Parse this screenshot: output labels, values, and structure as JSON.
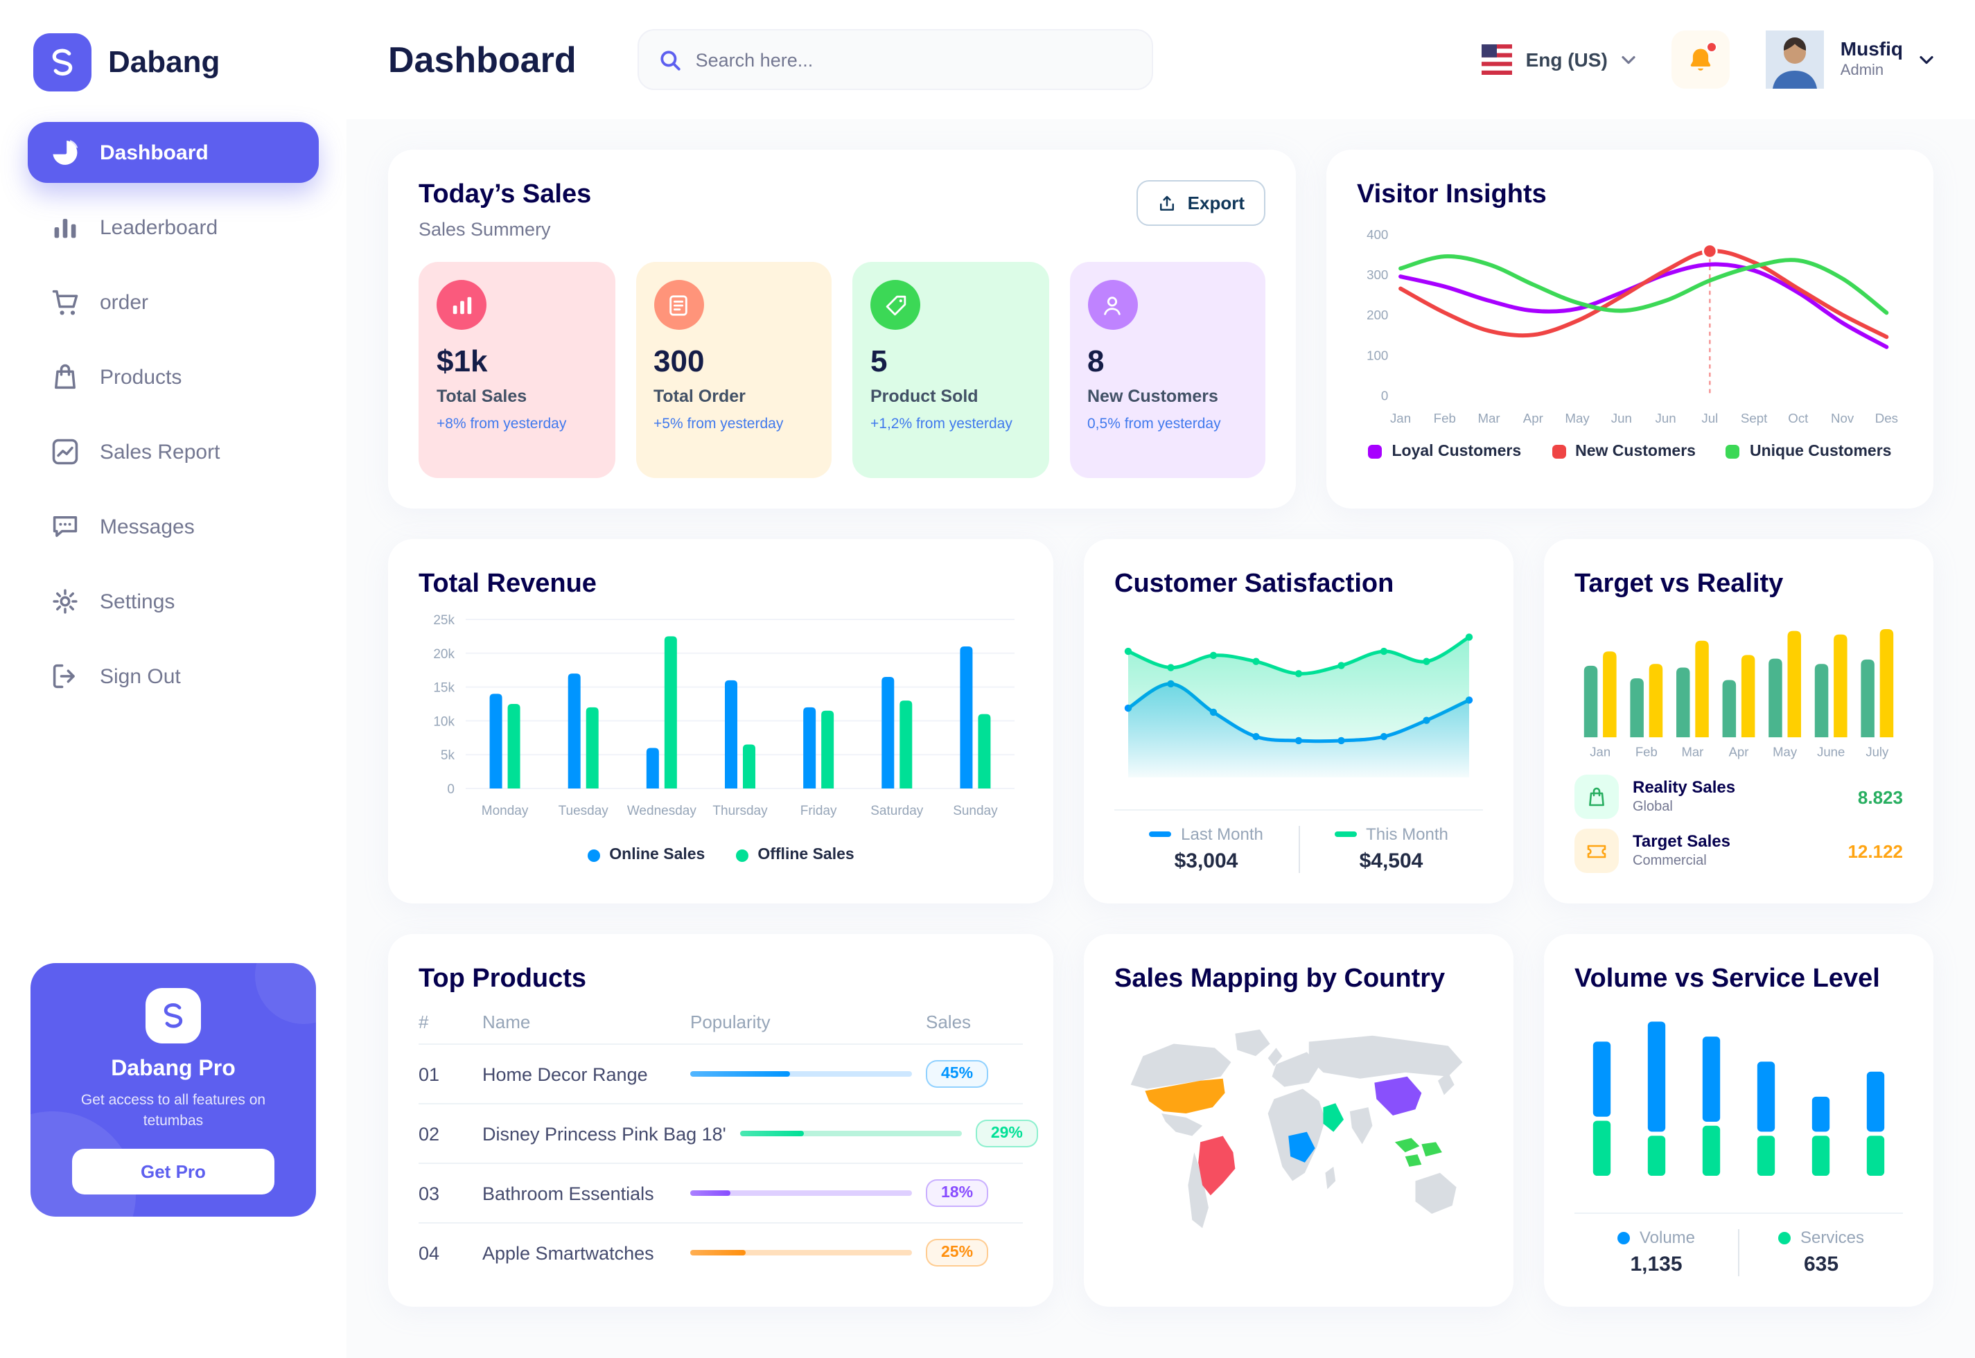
{
  "app": {
    "brand": "Dabang",
    "page_title": "Dashboard"
  },
  "theme": {
    "primary": "#5D5FEF",
    "page_bg": "#FAFBFC",
    "card_bg": "#FFFFFF",
    "heading": "#05004E",
    "text_dark": "#151D48",
    "text_gray": "#737791"
  },
  "sidebar": {
    "items": [
      {
        "label": "Dashboard",
        "icon": "pie-chart",
        "active": true
      },
      {
        "label": "Leaderboard",
        "icon": "bar-chart",
        "active": false
      },
      {
        "label": "order",
        "icon": "cart",
        "active": false
      },
      {
        "label": "Products",
        "icon": "bag",
        "active": false
      },
      {
        "label": "Sales Report",
        "icon": "line-chart",
        "active": false
      },
      {
        "label": "Messages",
        "icon": "chat",
        "active": false
      },
      {
        "label": "Settings",
        "icon": "gear",
        "active": false
      },
      {
        "label": "Sign Out",
        "icon": "sign-out",
        "active": false
      }
    ],
    "pro_card": {
      "title": "Dabang Pro",
      "subtitle": "Get access to all features on tetumbas",
      "button": "Get Pro"
    }
  },
  "header": {
    "search_placeholder": "Search here...",
    "language": "Eng (US)",
    "notification_dot": true,
    "user_name": "Musfiq",
    "user_role": "Admin"
  },
  "todays_sales": {
    "title": "Today’s Sales",
    "subtitle": "Sales Summery",
    "export_label": "Export",
    "stats": [
      {
        "value": "$1k",
        "label": "Total Sales",
        "delta": "+8% from yesterday",
        "bg": "#FFE2E5",
        "icon_bg": "#FA5A7D",
        "icon": "bar-chart"
      },
      {
        "value": "300",
        "label": "Total Order",
        "delta": "+5% from yesterday",
        "bg": "#FFF4DE",
        "icon_bg": "#FF947A",
        "icon": "order-list"
      },
      {
        "value": "5",
        "label": "Product Sold",
        "delta": "+1,2% from yesterday",
        "bg": "#DCFCE7",
        "icon_bg": "#3CD856",
        "icon": "tag-check"
      },
      {
        "value": "8",
        "label": "New Customers",
        "delta": "0,5% from yesterday",
        "bg": "#F3E8FF",
        "icon_bg": "#BF83FF",
        "icon": "new-customer"
      }
    ]
  },
  "chart_data": [
    {
      "name": "visitor_insights",
      "type": "line",
      "title": "Visitor Insights",
      "x": [
        "Jan",
        "Feb",
        "Mar",
        "Apr",
        "May",
        "Jun",
        "Jun",
        "Jul",
        "Sept",
        "Oct",
        "Nov",
        "Des"
      ],
      "ylim": [
        0,
        400
      ],
      "yticks": [
        0,
        100,
        200,
        300,
        400
      ],
      "grid": false,
      "legend_position": "bottom",
      "series": [
        {
          "name": "Loyal Customers",
          "color": "#A700FF",
          "values": [
            295,
            270,
            235,
            210,
            215,
            255,
            300,
            325,
            310,
            255,
            180,
            120
          ]
        },
        {
          "name": "New Customers",
          "color": "#EF4444",
          "values": [
            265,
            205,
            160,
            150,
            185,
            245,
            310,
            358,
            330,
            265,
            200,
            145
          ]
        },
        {
          "name": "Unique Customers",
          "color": "#3CD856",
          "values": [
            315,
            345,
            325,
            275,
            230,
            210,
            235,
            285,
            320,
            335,
            290,
            205
          ]
        }
      ],
      "highlight": {
        "x_index": 7,
        "series": "New Customers"
      }
    },
    {
      "name": "total_revenue",
      "type": "bar",
      "title": "Total Revenue",
      "categories": [
        "Monday",
        "Tuesday",
        "Wednesday",
        "Thursday",
        "Friday",
        "Saturday",
        "Sunday"
      ],
      "ylim": [
        0,
        25000
      ],
      "yticks": [
        "0",
        "5k",
        "10k",
        "15k",
        "20k",
        "25k"
      ],
      "grid": true,
      "legend_position": "bottom",
      "series": [
        {
          "name": "Online Sales",
          "color": "#0095FF",
          "values": [
            14000,
            17000,
            6000,
            16000,
            12000,
            16500,
            21000
          ]
        },
        {
          "name": "Offline Sales",
          "color": "#00E096",
          "values": [
            12500,
            12000,
            22500,
            6500,
            11500,
            13000,
            11000
          ]
        }
      ]
    },
    {
      "name": "customer_satisfaction",
      "type": "area",
      "title": "Customer Satisfaction",
      "series": [
        {
          "name": "Last Month",
          "color": "#0095FF",
          "total": "$3,004",
          "values": [
            3.2,
            3.8,
            3.1,
            2.5,
            2.4,
            2.4,
            2.5,
            2.9,
            3.4
          ]
        },
        {
          "name": "This Month",
          "color": "#00E096",
          "total": "$4,504",
          "values": [
            4.6,
            4.2,
            4.5,
            4.35,
            4.05,
            4.25,
            4.6,
            4.35,
            4.95
          ]
        }
      ]
    },
    {
      "name": "target_vs_reality",
      "type": "bar",
      "title": "Target vs Reality",
      "categories": [
        "Jan",
        "Feb",
        "Mar",
        "Apr",
        "May",
        "June",
        "July"
      ],
      "ylim": [
        0,
        13
      ],
      "series": [
        {
          "name": "Reality Sales",
          "color": "#4AB58E",
          "values": [
            8.0,
            6.6,
            7.8,
            6.4,
            8.8,
            8.2,
            8.7
          ]
        },
        {
          "name": "Target Sales",
          "color": "#FFCF00",
          "values": [
            9.6,
            8.2,
            10.8,
            9.2,
            11.9,
            11.5,
            12.1
          ]
        }
      ],
      "summary": [
        {
          "label": "Reality Sales",
          "sublabel": "Global",
          "value": "8.823",
          "color": "#27AE60",
          "icon_bg": "#E2FFF1",
          "icon": "bag"
        },
        {
          "label": "Target Sales",
          "sublabel": "Commercial",
          "value": "12.122",
          "color": "#FFA412",
          "icon_bg": "#FFF4DE",
          "icon": "ticket"
        }
      ]
    },
    {
      "name": "top_products",
      "type": "table",
      "title": "Top Products",
      "columns": [
        "#",
        "Name",
        "Popularity",
        "Sales"
      ],
      "rows": [
        {
          "id": "01",
          "name": "Home Decor Range",
          "popularity": 45,
          "sales": "45%",
          "color": "#0095FF",
          "track": "#CDE7FF",
          "badge_bg": "#F0F9FF"
        },
        {
          "id": "02",
          "name": "Disney Princess Pink Bag 18'",
          "popularity": 29,
          "sales": "29%",
          "color": "#00E096",
          "track": "#B9F3DC",
          "badge_bg": "#EAFBF3"
        },
        {
          "id": "03",
          "name": "Bathroom Essentials",
          "popularity": 18,
          "sales": "18%",
          "color": "#884DFF",
          "track": "#DECFFF",
          "badge_bg": "#F6F1FF"
        },
        {
          "id": "04",
          "name": "Apple Smartwatches",
          "popularity": 25,
          "sales": "25%",
          "color": "#FF8F0D",
          "track": "#FFDFBC",
          "badge_bg": "#FFF6EA"
        }
      ]
    },
    {
      "name": "sales_mapping",
      "type": "map",
      "title": "Sales Mapping by Country",
      "regions": [
        {
          "country": "United States",
          "color": "#FFA412"
        },
        {
          "country": "Brazil",
          "color": "#F64E60"
        },
        {
          "country": "Saudi Arabia",
          "color": "#00E096"
        },
        {
          "country": "Democratic Republic of Congo",
          "color": "#0095FF"
        },
        {
          "country": "China",
          "color": "#8950FC"
        },
        {
          "country": "Indonesia",
          "color": "#3CD856"
        },
        {
          "country": "Other",
          "color": "#D9DDE2"
        }
      ]
    },
    {
      "name": "volume_vs_service",
      "type": "stacked-bar",
      "title": "Volume vs Service Level",
      "legend_position": "bottom",
      "series": [
        {
          "name": "Volume",
          "color": "#0095FF",
          "total": "1,135",
          "values": [
            75,
            110,
            85,
            70,
            35,
            60
          ]
        },
        {
          "name": "Services",
          "color": "#00E096",
          "total": "635",
          "values": [
            55,
            40,
            50,
            40,
            40,
            40
          ]
        }
      ]
    }
  ]
}
